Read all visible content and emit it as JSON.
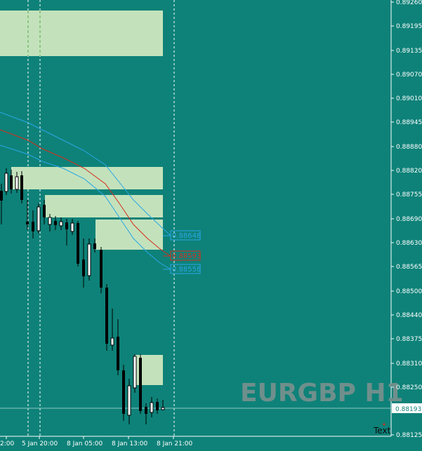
{
  "symbol_watermark": "EURGBP H1",
  "text_object": "Text",
  "price_axis": {
    "labels": [
      "0.89260",
      "0.89195",
      "0.89135",
      "0.89070",
      "0.89010",
      "0.88945",
      "0.88880",
      "0.88820",
      "0.88755",
      "0.88690",
      "0.88630",
      "0.88565",
      "0.88500",
      "0.88440",
      "0.88375",
      "0.88310",
      "0.88250",
      "0.88125"
    ],
    "current_price": "0.88193"
  },
  "time_axis": {
    "labels": [
      "2:00",
      "5 Jan 20:00",
      "8 Jan 05:00",
      "8 Jan 13:00",
      "8 Jan 21:00"
    ]
  },
  "indicator_tags": {
    "upper": "0.88648",
    "middle": "0.88593",
    "lower": "0.88558"
  },
  "colors": {
    "background": "#0e8279",
    "zone": "#c3e2bc",
    "upper_band": "#2aa6e6",
    "middle_line": "#d62d1a",
    "candle_bull": "#ffffff",
    "candle_bear": "#000000",
    "watermark": "#6f8f8c"
  }
}
